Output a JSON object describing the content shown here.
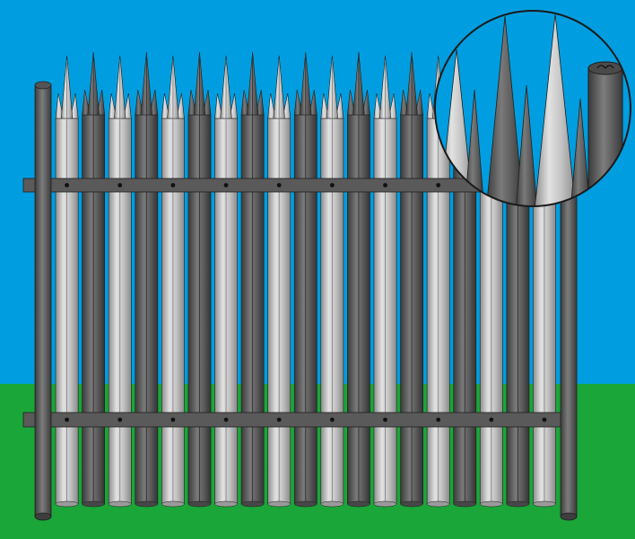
{
  "scene": {
    "subject": "palisade-fence-panel",
    "colors": {
      "sky": "#009ee0",
      "ground": "#1aa639",
      "post": "#6c6c6c",
      "post_dark": "#3e3e3e",
      "pale_light": "#c9c9c9",
      "pale_light_shade": "#9a9a9a",
      "pale_dark": "#6e6e6e",
      "pale_dark_shade": "#474747",
      "rail": "#5a5a5a",
      "outline": "#1f1f1f"
    },
    "pale_count": 19,
    "rail_count": 2,
    "post_count": 2,
    "inset": "magnified-spike-detail"
  }
}
